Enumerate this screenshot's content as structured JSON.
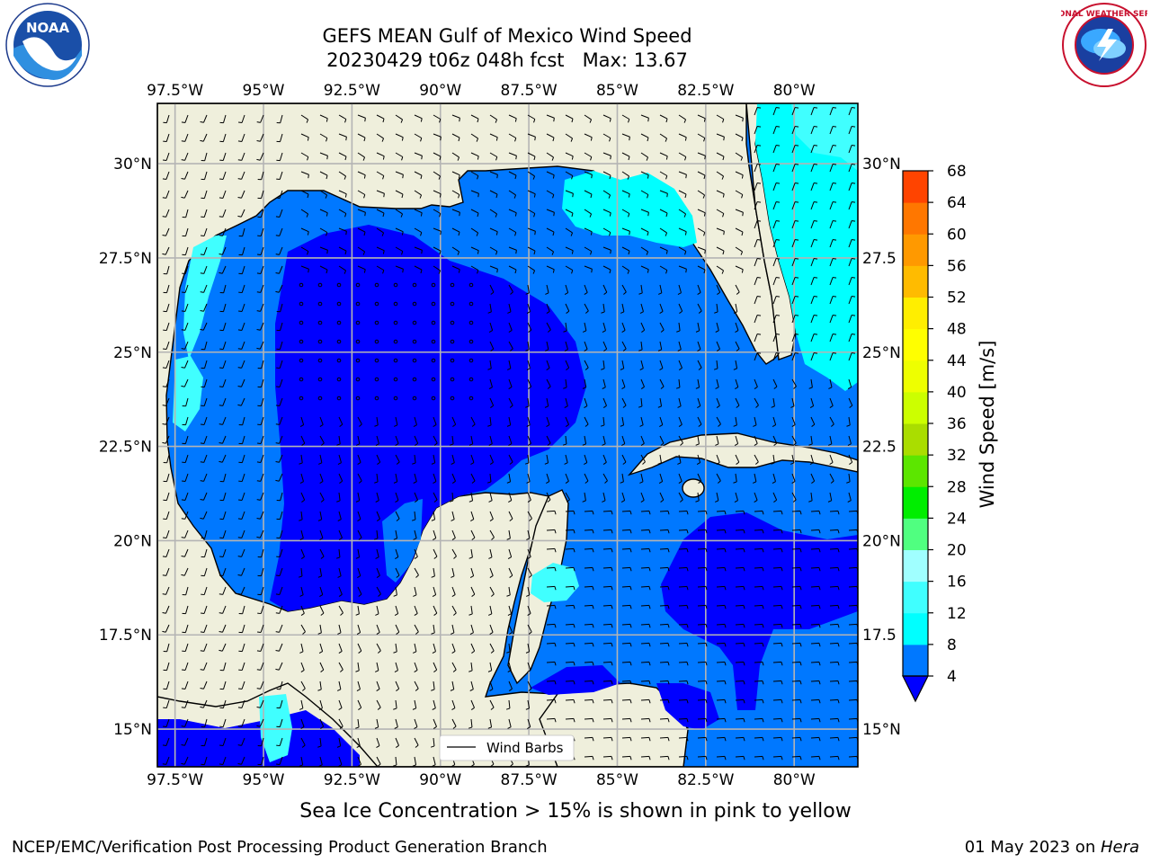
{
  "title_line1": "GEFS MEAN Gulf of Mexico Wind Speed",
  "title_line2": "20230429 t06z 048h fcst   Max: 13.67",
  "subtitle": "Sea Ice Concentration > 15% is shown in pink to yellow",
  "footer_left": "NCEP/EMC/Verification Post Processing Product Generation Branch",
  "footer_date": "01 May 2023 on ",
  "footer_host": "Hera",
  "logo_left_text": "NOAA",
  "logo_right_ring_text": "NATIONAL WEATHER SERVICE",
  "legend_label": "Wind Barbs",
  "colorbar_label": "Wind Speed [m/s]",
  "lon_labels": [
    "97.5°W",
    "95°W",
    "92.5°W",
    "90°W",
    "87.5°W",
    "85°W",
    "82.5°W",
    "80°W"
  ],
  "lat_labels": [
    "30°N",
    "27.5°N",
    "25°N",
    "22.5°N",
    "20°N",
    "17.5°N",
    "15°N"
  ],
  "lat_labels_right": [
    "30°N",
    "27.5",
    "25°N",
    "22.5",
    "20°N",
    "17.5",
    "15°N"
  ],
  "map_extent": {
    "lon_min": -98,
    "lon_max": -78.2,
    "lat_min": 14,
    "lat_max": 31.6
  },
  "colorbar": {
    "ticks": [
      4,
      8,
      12,
      16,
      20,
      24,
      28,
      32,
      36,
      40,
      44,
      48,
      52,
      56,
      60,
      64,
      68
    ],
    "colors": [
      "#0078ff",
      "#00ffff",
      "#40ffff",
      "#a0ffff",
      "#50ff80",
      "#00ee00",
      "#5ce600",
      "#aadd00",
      "#ccff00",
      "#eeff00",
      "#ffff00",
      "#ffee00",
      "#ffbb00",
      "#ff9900",
      "#ff7700",
      "#ff4400"
    ],
    "under_color": "#0000ff"
  },
  "colors": {
    "land": "#efefdc",
    "strong": "#0000ff",
    "mid": "#0078ff",
    "light": "#00ffff",
    "lighter": "#40ffff",
    "grid": "#b4b4b4"
  }
}
